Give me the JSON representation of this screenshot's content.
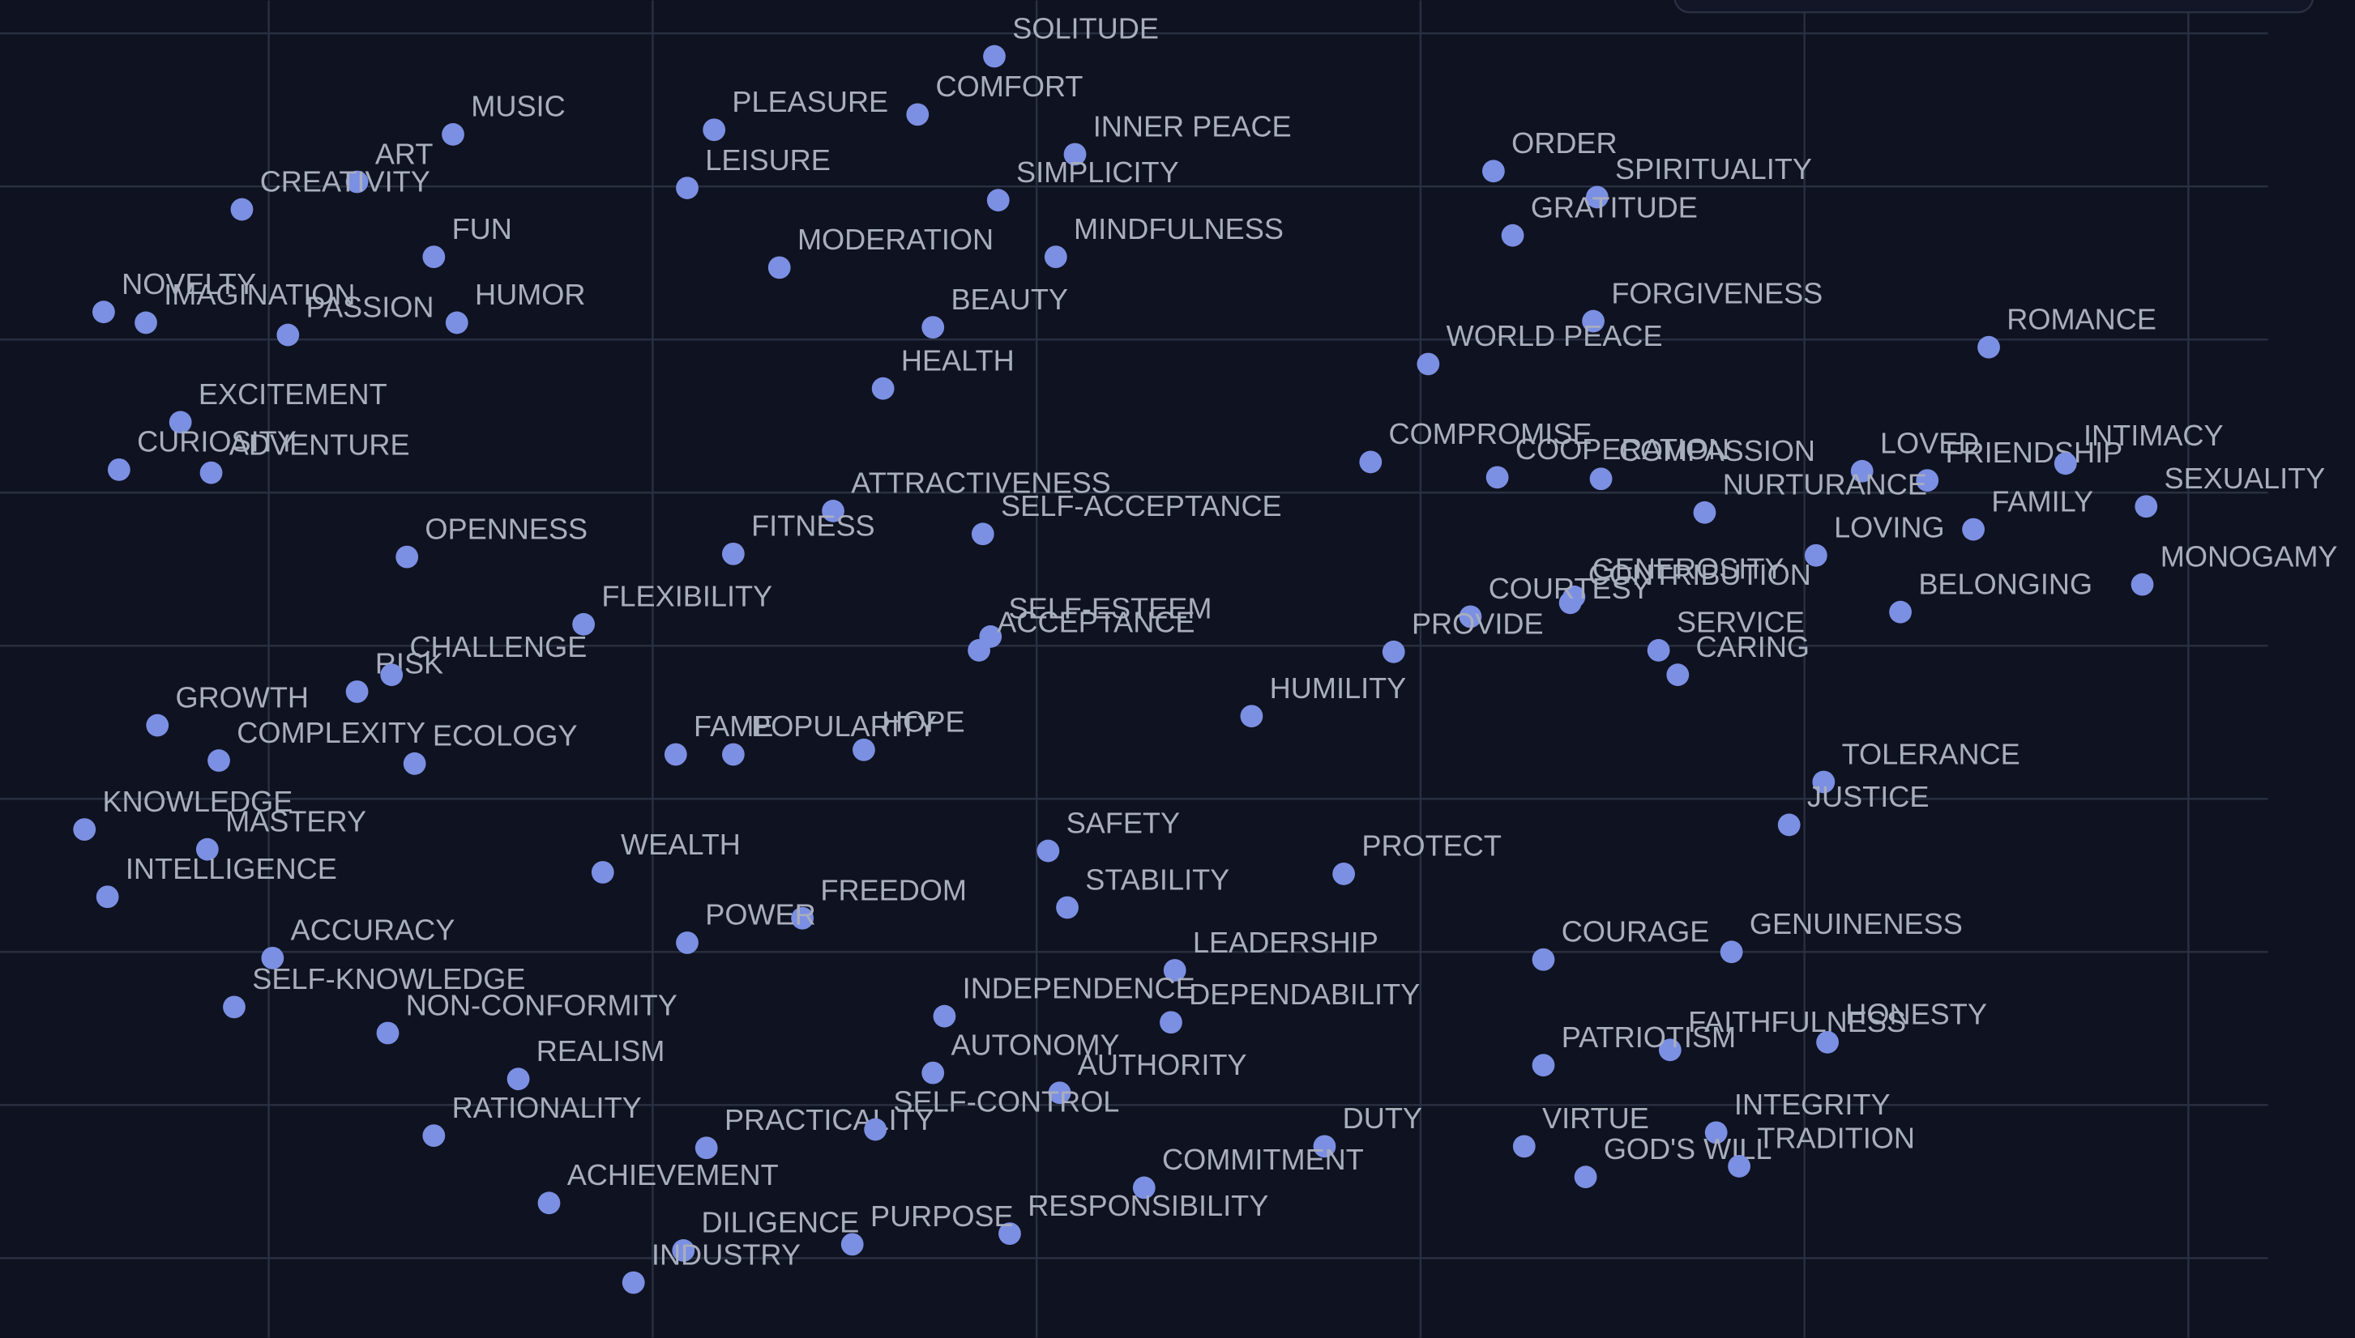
{
  "chart_data": {
    "type": "scatter",
    "labels": [
      "SOLITUDE",
      "MUSIC",
      "PLEASURE",
      "COMFORT",
      "INNER PEACE",
      "ART",
      "CREATIVITY",
      "LEISURE",
      "SIMPLICITY",
      "ORDER",
      "SPIRITUALITY",
      "GRATITUDE",
      "FUN",
      "MODERATION",
      "MINDFULNESS",
      "NOVELTY",
      "IMAGINATION",
      "PASSION",
      "HUMOR",
      "BEAUTY",
      "FORGIVENESS",
      "WORLD PEACE",
      "ROMANCE",
      "HEALTH",
      "EXCITEMENT",
      "CURIOSITY",
      "ADVENTURE",
      "COMPROMISE",
      "COOPERATION",
      "COMPASSION",
      "LOVED",
      "FRIENDSHIP",
      "INTIMACY",
      "SEXUALITY",
      "NURTURANCE",
      "FAMILY",
      "ATTRACTIVENESS",
      "SELF-ACCEPTANCE",
      "OPENNESS",
      "FITNESS",
      "LOVING",
      "MONOGAMY",
      "BELONGING",
      "GENEROSITY",
      "CONTRIBUTION",
      "COURTESY",
      "PROVIDE",
      "FLEXIBILITY",
      "SELF-ESTEEM",
      "ACCEPTANCE",
      "SERVICE",
      "CARING",
      "RISK",
      "CHALLENGE",
      "HUMILITY",
      "GROWTH",
      "COMPLEXITY",
      "ECOLOGY",
      "FAME",
      "POPULARITY",
      "HOPE",
      "TOLERANCE",
      "JUSTICE",
      "KNOWLEDGE",
      "MASTERY",
      "INTELLIGENCE",
      "WEALTH",
      "SAFETY",
      "PROTECT",
      "STABILITY",
      "FREEDOM",
      "POWER",
      "ACCURACY",
      "LEADERSHIP",
      "COURAGE",
      "GENUINENESS",
      "SELF-KNOWLEDGE",
      "NON-CONFORMITY",
      "INDEPENDENCE",
      "DEPENDABILITY",
      "FAITHFULNESS",
      "HONESTY",
      "PATRIOTISM",
      "REALISM",
      "AUTONOMY",
      "AUTHORITY",
      "RATIONALITY",
      "PRACTICALITY",
      "SELF-CONTROL",
      "DUTY",
      "VIRTUE",
      "INTEGRITY",
      "GOD'S WILL",
      "TRADITION",
      "COMMITMENT",
      "ACHIEVEMENT",
      "RESPONSIBILITY",
      "DILIGENCE",
      "PURPOSE",
      "INDUSTRY"
    ],
    "x": [
      1.89,
      0.48,
      1.16,
      1.69,
      2.1,
      0.23,
      -0.07,
      1.09,
      1.9,
      3.19,
      3.46,
      3.24,
      0.43,
      1.33,
      2.05,
      -0.43,
      -0.32,
      0.05,
      0.49,
      1.73,
      3.45,
      3.02,
      4.48,
      1.6,
      -0.23,
      -0.39,
      -0.15,
      2.87,
      3.2,
      3.47,
      4.15,
      4.32,
      4.68,
      4.89,
      3.74,
      4.44,
      1.47,
      1.86,
      0.36,
      1.21,
      4.03,
      4.88,
      4.25,
      3.4,
      3.39,
      3.13,
      2.93,
      0.82,
      1.88,
      1.85,
      3.62,
      3.67,
      0.23,
      0.32,
      2.56,
      -0.29,
      -0.13,
      0.38,
      1.06,
      1.21,
      1.55,
      4.05,
      3.96,
      -0.48,
      -0.16,
      -0.42,
      0.87,
      2.03,
      2.8,
      2.08,
      1.39,
      1.09,
      0.01,
      2.36,
      3.32,
      3.81,
      -0.09,
      0.31,
      1.76,
      2.35,
      3.65,
      4.06,
      3.32,
      0.65,
      1.73,
      2.06,
      0.43,
      1.14,
      1.58,
      2.75,
      3.27,
      3.77,
      3.43,
      3.83,
      2.28,
      0.73,
      1.93,
      1.08,
      1.52,
      0.95
    ],
    "values": [
      7.85,
      7.34,
      7.37,
      7.47,
      7.21,
      7.03,
      6.85,
      6.99,
      6.91,
      7.1,
      6.93,
      6.68,
      6.54,
      6.47,
      6.54,
      6.18,
      6.11,
      6.03,
      6.11,
      6.08,
      6.12,
      5.84,
      5.95,
      5.68,
      5.46,
      5.15,
      5.13,
      5.2,
      5.1,
      5.09,
      5.14,
      5.08,
      5.19,
      4.91,
      4.87,
      4.76,
      4.88,
      4.73,
      4.58,
      4.6,
      4.59,
      4.4,
      4.22,
      4.32,
      4.28,
      4.19,
      3.96,
      4.14,
      4.06,
      3.97,
      3.97,
      3.81,
      3.7,
      3.81,
      3.54,
      3.48,
      3.25,
      3.23,
      3.29,
      3.29,
      3.32,
      3.11,
      2.83,
      2.8,
      2.67,
      2.36,
      2.52,
      2.66,
      2.51,
      2.29,
      2.22,
      2.06,
      1.96,
      1.88,
      1.95,
      2.0,
      1.64,
      1.47,
      1.58,
      1.54,
      1.36,
      1.41,
      1.26,
      1.17,
      1.21,
      1.08,
      0.8,
      0.72,
      0.84,
      0.73,
      0.73,
      0.82,
      0.53,
      0.6,
      0.46,
      0.36,
      0.16,
      0.05,
      0.09,
      -0.16
    ],
    "color": "#7b8fe3",
    "xlim": [
      -0.7,
      5.434
    ],
    "ylim": [
      -0.52,
      8.216
    ],
    "xticks": [
      0,
      1,
      2,
      3,
      4,
      5
    ],
    "yticks": [
      0,
      1,
      2,
      3,
      4,
      5,
      6,
      7,
      8
    ],
    "grid": true
  }
}
